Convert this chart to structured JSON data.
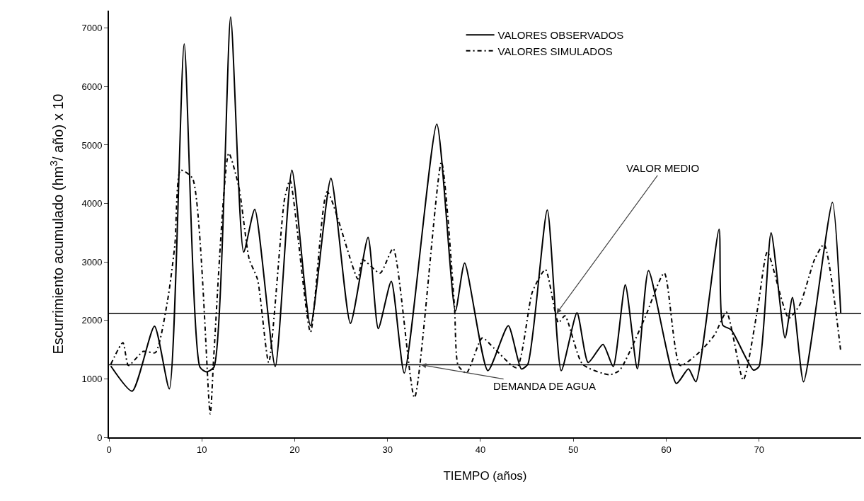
{
  "chart_data": {
    "type": "line",
    "xlabel": "TIEMPO (años)",
    "ylabel": "Escurrimiento acumulado (hm$^{3}$/ año) x 10",
    "xlim": [
      0,
      81
    ],
    "ylim": [
      0,
      7300
    ],
    "xticks": [
      0,
      10,
      20,
      30,
      40,
      50,
      60,
      70
    ],
    "yticks": [
      0,
      1000,
      2000,
      3000,
      4000,
      5000,
      6000,
      7000
    ],
    "grid": false,
    "legend": "top right",
    "series": [
      {
        "name": "VALORES OBSERVADOS",
        "color": "#000000",
        "line_style": "solid",
        "x": [
          0.2,
          2.5,
          4.9,
          6.5,
          8.1,
          9.8,
          10.5,
          11.3,
          13.1,
          14.5,
          15.7,
          17.9,
          19.7,
          21.7,
          23.9,
          26.0,
          27.9,
          29.0,
          30.4,
          31.8,
          35.3,
          37.3,
          38.3,
          40.8,
          43.0,
          44.4,
          45.1,
          47.2,
          48.7,
          50.4,
          51.6,
          53.2,
          54.3,
          55.6,
          56.9,
          58.1,
          61.1,
          62.4,
          63.2,
          65.7,
          66.1,
          67.0,
          69.4,
          70.0,
          71.3,
          72.8,
          73.6,
          74.8,
          77.9,
          78.8
        ],
        "values": [
          1220,
          790,
          1900,
          830,
          6730,
          1200,
          1120,
          1200,
          7190,
          3170,
          3900,
          1210,
          4570,
          1910,
          4430,
          1950,
          3420,
          1860,
          2670,
          1100,
          5360,
          2160,
          2980,
          1140,
          1910,
          1170,
          1250,
          3890,
          1140,
          2130,
          1280,
          1590,
          1210,
          2610,
          1170,
          2850,
          920,
          1170,
          950,
          3560,
          1920,
          1840,
          1150,
          1210,
          3500,
          1700,
          2390,
          950,
          4020,
          2130
        ]
      },
      {
        "name": "VALORES SIMULADOS",
        "color": "#000000",
        "line_style": "dashed",
        "x": [
          0.2,
          1.5,
          2.1,
          3.7,
          5.0,
          6.3,
          7.1,
          7.7,
          9.0,
          10.9,
          11.3,
          12.9,
          14.0,
          15.1,
          16.0,
          17.2,
          18.9,
          19.5,
          21.7,
          23.5,
          26.8,
          27.3,
          29.2,
          30.6,
          32.9,
          35.8,
          37.2,
          37.6,
          38.5,
          40.2,
          41.5,
          43.9,
          45.6,
          47.0,
          48.4,
          49.1,
          51.0,
          53.9,
          55.0,
          57.7,
          59.8,
          61.5,
          63.6,
          65.2,
          66.5,
          68.3,
          69.9,
          70.9,
          73.2,
          74.4,
          76.0,
          77.0,
          78.8
        ],
        "values": [
          1250,
          1620,
          1230,
          1470,
          1450,
          2330,
          3300,
          4570,
          4430,
          400,
          1430,
          4860,
          4270,
          3050,
          2700,
          1280,
          4070,
          4400,
          1800,
          4200,
          2710,
          3040,
          2810,
          3230,
          680,
          4710,
          2250,
          1230,
          1100,
          1700,
          1520,
          1190,
          2490,
          2870,
          1960,
          2080,
          1250,
          1070,
          1150,
          2040,
          2810,
          1230,
          1460,
          1750,
          2140,
          980,
          2250,
          3170,
          2040,
          2270,
          3050,
          3300,
          1470
        ]
      }
    ],
    "ref_lines": [
      {
        "axis": "y",
        "value": 2120,
        "color": "#000000"
      },
      {
        "axis": "y",
        "value": 1240,
        "color": "#000000"
      }
    ],
    "annotations": [
      {
        "text": "VALOR MEDIO",
        "x": 48.2,
        "y": 2120
      },
      {
        "text": "DEMANDA DE AGUA",
        "x": 33.6,
        "y": 1240
      }
    ]
  }
}
